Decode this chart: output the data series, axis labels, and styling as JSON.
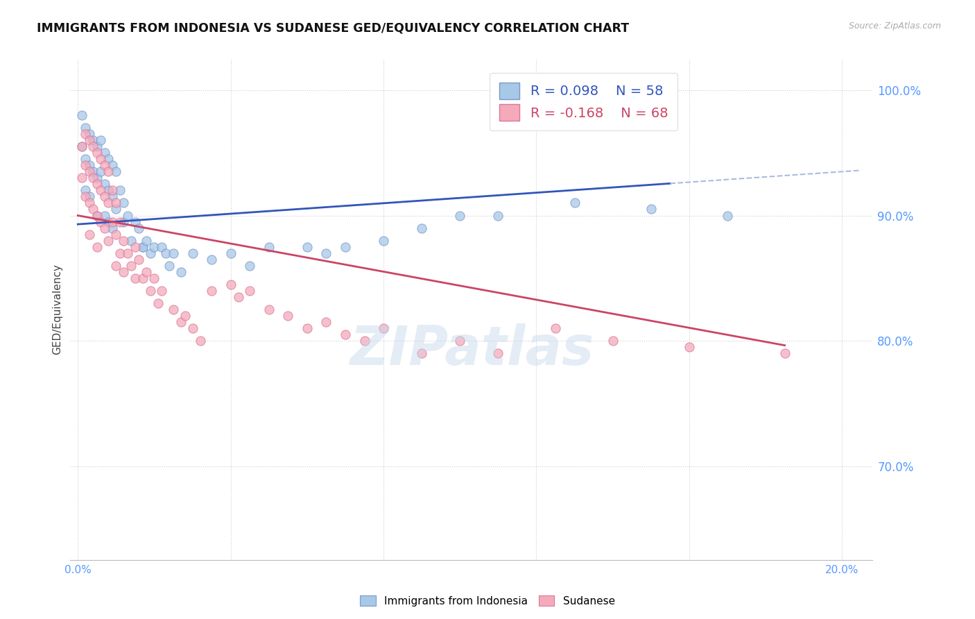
{
  "title": "IMMIGRANTS FROM INDONESIA VS SUDANESE GED/EQUIVALENCY CORRELATION CHART",
  "source": "Source: ZipAtlas.com",
  "ylabel": "GED/Equivalency",
  "ylim": [
    0.625,
    1.025
  ],
  "xlim": [
    -0.002,
    0.208
  ],
  "yticks": [
    0.7,
    0.8,
    0.9,
    1.0
  ],
  "ytick_labels": [
    "70.0%",
    "80.0%",
    "90.0%",
    "100.0%"
  ],
  "indonesia_color": "#a8c8e8",
  "sudanese_color": "#f4aabb",
  "indonesia_edge": "#7799cc",
  "sudanese_edge": "#dd7799",
  "trend_indonesia_color": "#3355bb",
  "trend_sudanese_color": "#cc4466",
  "trend_indonesia_dashed_color": "#aabbdd",
  "R_indonesia": 0.098,
  "N_indonesia": 58,
  "R_sudanese": -0.168,
  "N_sudanese": 68,
  "legend_labels": [
    "Immigrants from Indonesia",
    "Sudanese"
  ],
  "watermark": "ZIPatlas",
  "indonesia_x": [
    0.001,
    0.001,
    0.002,
    0.002,
    0.002,
    0.003,
    0.003,
    0.003,
    0.004,
    0.004,
    0.005,
    0.005,
    0.005,
    0.006,
    0.006,
    0.007,
    0.007,
    0.007,
    0.008,
    0.008,
    0.008,
    0.009,
    0.009,
    0.009,
    0.01,
    0.01,
    0.011,
    0.012,
    0.012,
    0.013,
    0.014,
    0.015,
    0.016,
    0.017,
    0.017,
    0.018,
    0.019,
    0.02,
    0.022,
    0.023,
    0.024,
    0.025,
    0.027,
    0.03,
    0.035,
    0.04,
    0.045,
    0.05,
    0.06,
    0.065,
    0.07,
    0.08,
    0.09,
    0.1,
    0.11,
    0.13,
    0.15,
    0.17
  ],
  "indonesia_y": [
    0.98,
    0.955,
    0.97,
    0.945,
    0.92,
    0.965,
    0.94,
    0.915,
    0.96,
    0.935,
    0.955,
    0.93,
    0.9,
    0.96,
    0.935,
    0.95,
    0.925,
    0.9,
    0.945,
    0.92,
    0.895,
    0.94,
    0.915,
    0.89,
    0.935,
    0.905,
    0.92,
    0.91,
    0.895,
    0.9,
    0.88,
    0.895,
    0.89,
    0.875,
    0.875,
    0.88,
    0.87,
    0.875,
    0.875,
    0.87,
    0.86,
    0.87,
    0.855,
    0.87,
    0.865,
    0.87,
    0.86,
    0.875,
    0.875,
    0.87,
    0.875,
    0.88,
    0.89,
    0.9,
    0.9,
    0.91,
    0.905,
    0.9
  ],
  "sudanese_x": [
    0.001,
    0.001,
    0.002,
    0.002,
    0.002,
    0.003,
    0.003,
    0.003,
    0.003,
    0.004,
    0.004,
    0.004,
    0.005,
    0.005,
    0.005,
    0.005,
    0.006,
    0.006,
    0.006,
    0.007,
    0.007,
    0.007,
    0.008,
    0.008,
    0.008,
    0.009,
    0.009,
    0.01,
    0.01,
    0.01,
    0.011,
    0.011,
    0.012,
    0.012,
    0.013,
    0.014,
    0.015,
    0.015,
    0.016,
    0.017,
    0.018,
    0.019,
    0.02,
    0.021,
    0.022,
    0.025,
    0.027,
    0.028,
    0.03,
    0.032,
    0.035,
    0.04,
    0.042,
    0.045,
    0.05,
    0.055,
    0.06,
    0.065,
    0.07,
    0.075,
    0.08,
    0.09,
    0.1,
    0.11,
    0.125,
    0.14,
    0.16,
    0.185
  ],
  "sudanese_y": [
    0.955,
    0.93,
    0.965,
    0.94,
    0.915,
    0.96,
    0.935,
    0.91,
    0.885,
    0.955,
    0.93,
    0.905,
    0.95,
    0.925,
    0.9,
    0.875,
    0.945,
    0.92,
    0.895,
    0.94,
    0.915,
    0.89,
    0.935,
    0.91,
    0.88,
    0.92,
    0.895,
    0.91,
    0.885,
    0.86,
    0.895,
    0.87,
    0.88,
    0.855,
    0.87,
    0.86,
    0.875,
    0.85,
    0.865,
    0.85,
    0.855,
    0.84,
    0.85,
    0.83,
    0.84,
    0.825,
    0.815,
    0.82,
    0.81,
    0.8,
    0.84,
    0.845,
    0.835,
    0.84,
    0.825,
    0.82,
    0.81,
    0.815,
    0.805,
    0.8,
    0.81,
    0.79,
    0.8,
    0.79,
    0.81,
    0.8,
    0.795,
    0.79
  ]
}
